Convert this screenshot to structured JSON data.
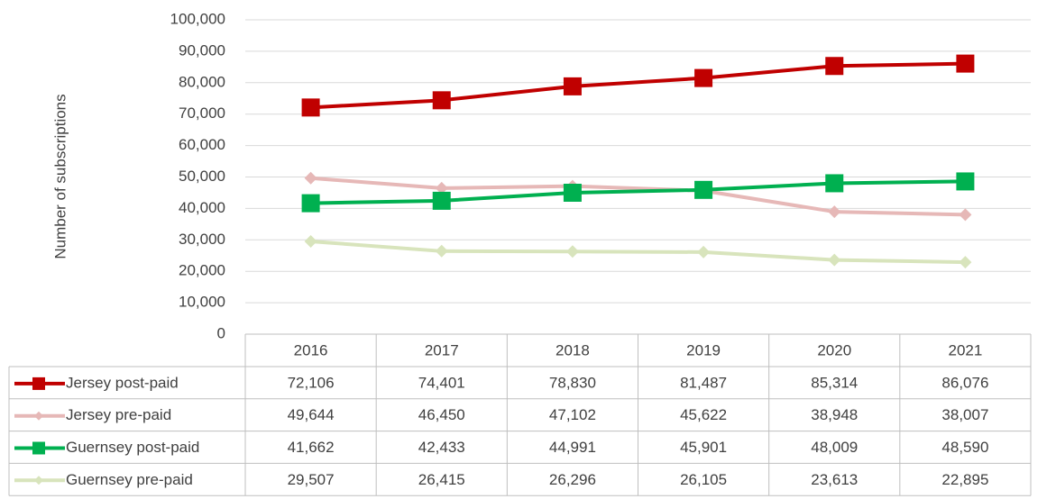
{
  "chart_data": {
    "type": "line",
    "y_label": "Number of subscriptions",
    "categories": [
      "2016",
      "2017",
      "2018",
      "2019",
      "2020",
      "2021"
    ],
    "ylim": [
      0,
      100000
    ],
    "yticks": [
      0,
      {
        "value": 10000,
        "label": "10,000"
      },
      {
        "value": 20000,
        "label": "20,000"
      },
      {
        "value": 30000,
        "label": "30,000"
      },
      {
        "value": 40000,
        "label": "40,000"
      },
      {
        "value": 50000,
        "label": "50,000"
      },
      {
        "value": 60000,
        "label": "60,000"
      },
      {
        "value": 70000,
        "label": "70,000"
      },
      {
        "value": 80000,
        "label": "80,000"
      },
      {
        "value": 90000,
        "label": "90,000"
      },
      {
        "value": 100000,
        "label": "100,000"
      }
    ],
    "grid": true,
    "series": [
      {
        "name": "Jersey post-paid",
        "color": "#c00000",
        "marker": "square",
        "values": [
          72106,
          74401,
          78830,
          81487,
          85314,
          86076
        ],
        "value_labels": [
          "72,106",
          "74,401",
          "78,830",
          "81,487",
          "85,314",
          "86,076"
        ]
      },
      {
        "name": "Jersey pre-paid",
        "color": "#e6b8b7",
        "marker": "diamond",
        "values": [
          49644,
          46450,
          47102,
          45622,
          38948,
          38007
        ],
        "value_labels": [
          "49,644",
          "46,450",
          "47,102",
          "45,622",
          "38,948",
          "38,007"
        ]
      },
      {
        "name": "Guernsey post-paid",
        "color": "#00b050",
        "marker": "square",
        "values": [
          41662,
          42433,
          44991,
          45901,
          48009,
          48590
        ],
        "value_labels": [
          "41,662",
          "42,433",
          "44,991",
          "45,901",
          "48,009",
          "48,590"
        ]
      },
      {
        "name": "Guernsey pre-paid",
        "color": "#d8e4bc",
        "marker": "diamond",
        "values": [
          29507,
          26415,
          26296,
          26105,
          23613,
          22895
        ],
        "value_labels": [
          "29,507",
          "26,415",
          "26,296",
          "26,105",
          "23,613",
          "22,895"
        ]
      }
    ]
  }
}
